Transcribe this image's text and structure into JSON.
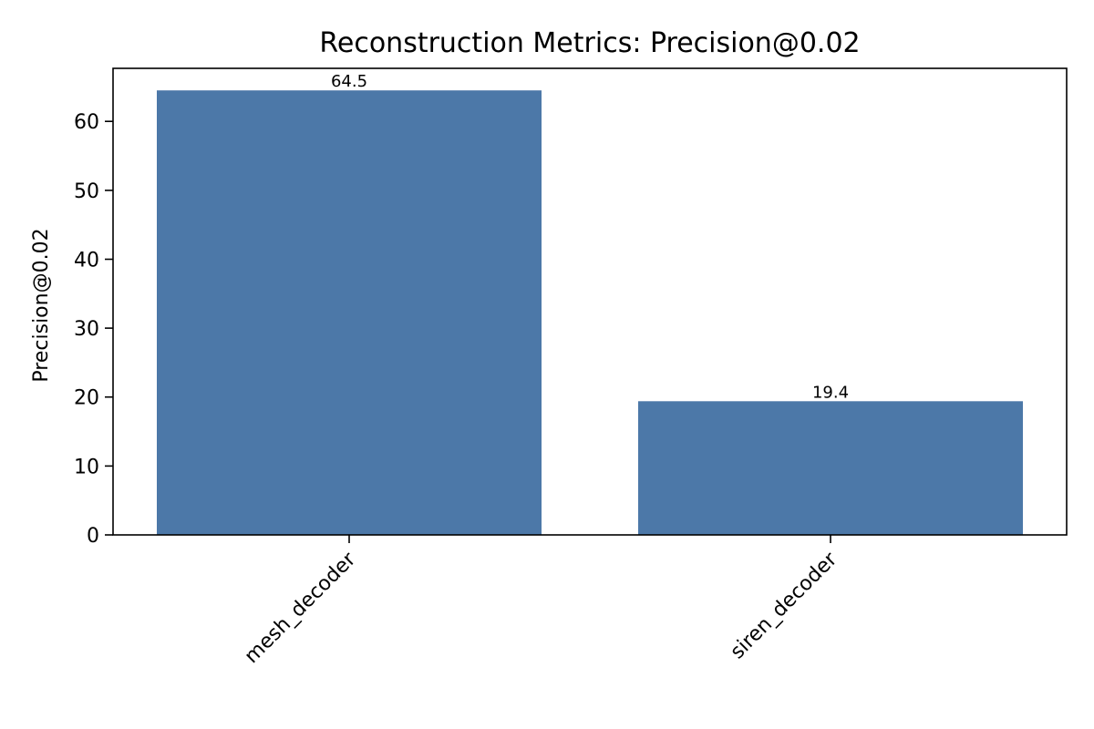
{
  "chart_data": {
    "type": "bar",
    "title": "Reconstruction Metrics: Precision@0.02",
    "xlabel": "",
    "ylabel": "Precision@0.02",
    "categories": [
      "mesh_decoder",
      "siren_decoder"
    ],
    "values": [
      64.5,
      19.4
    ],
    "value_labels": [
      "64.5",
      "19.4"
    ],
    "ylim": [
      0,
      67.7
    ],
    "yticks": [
      0,
      10,
      20,
      30,
      40,
      50,
      60
    ],
    "grid": false,
    "legend": "none",
    "bar_color": "#4c78a8"
  }
}
